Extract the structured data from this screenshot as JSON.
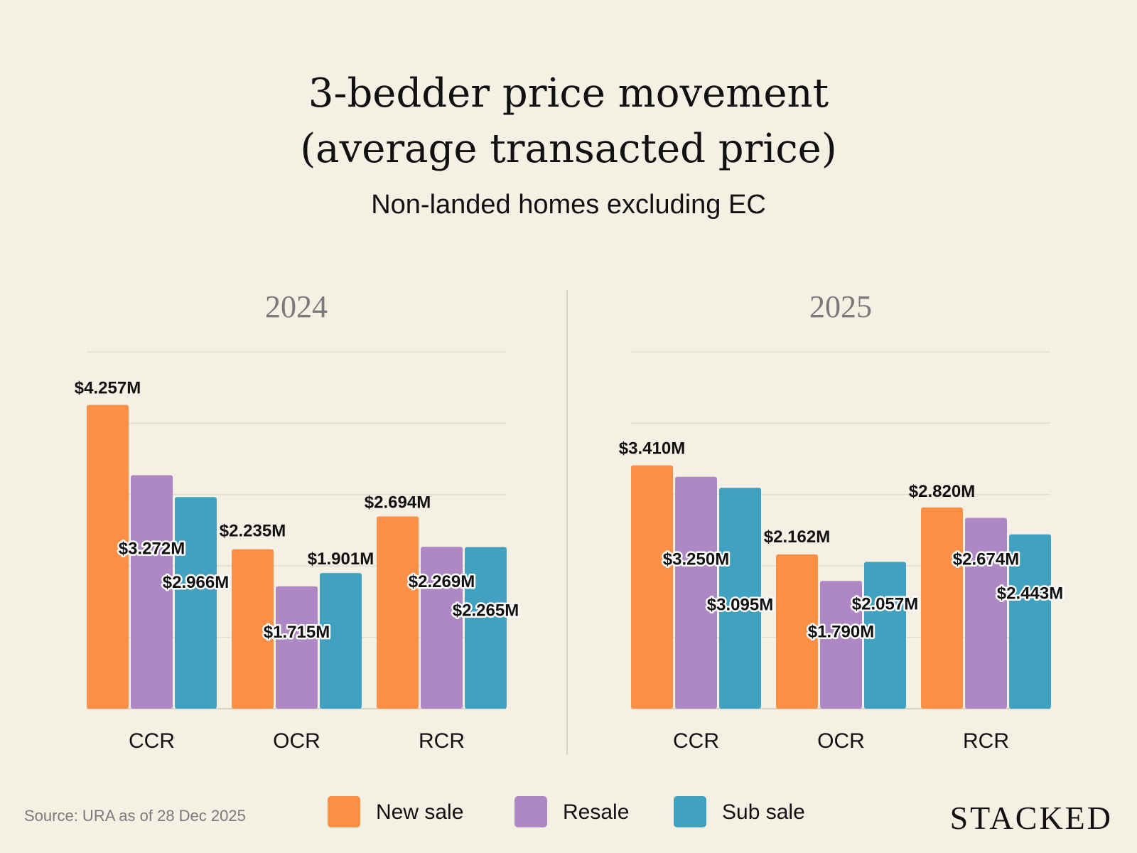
{
  "title_line1": "3-bedder price movement",
  "title_line2": "(average transacted price)",
  "subtitle": "Non-landed homes excluding EC",
  "source": "Source: URA as of 28 Dec 2025",
  "brand": "STACKED",
  "colors": {
    "background": "#F5F0E4",
    "new_sale": "#FB8F45",
    "resale": "#AD88C4",
    "sub_sale": "#40A2C0"
  },
  "legend": [
    {
      "label": "New sale",
      "color": "#FB8F45"
    },
    {
      "label": "Resale",
      "color": "#AD88C4"
    },
    {
      "label": "Sub sale",
      "color": "#40A2C0"
    }
  ],
  "chart_data": [
    {
      "type": "bar",
      "title": "2024",
      "categories": [
        "CCR",
        "OCR",
        "RCR"
      ],
      "ylim": [
        0,
        5
      ],
      "grid": true,
      "legend_position": "bottom",
      "series": [
        {
          "name": "New sale",
          "values": [
            4.257,
            2.235,
            2.694
          ],
          "labels": [
            "$4.257M",
            "$2.235M",
            "$2.694M"
          ]
        },
        {
          "name": "Resale",
          "values": [
            3.272,
            1.715,
            2.269
          ],
          "labels": [
            "$3.272M",
            "$1.715M",
            "$2.269M"
          ]
        },
        {
          "name": "Sub sale",
          "values": [
            2.966,
            1.901,
            2.265
          ],
          "labels": [
            "$2.966M",
            "$1.901M",
            "$2.265M"
          ]
        }
      ]
    },
    {
      "type": "bar",
      "title": "2025",
      "categories": [
        "CCR",
        "OCR",
        "RCR"
      ],
      "ylim": [
        0,
        5
      ],
      "grid": true,
      "legend_position": "bottom",
      "series": [
        {
          "name": "New sale",
          "values": [
            3.41,
            2.162,
            2.82
          ],
          "labels": [
            "$3.410M",
            "$2.162M",
            "$2.820M"
          ]
        },
        {
          "name": "Resale",
          "values": [
            3.25,
            1.79,
            2.674
          ],
          "labels": [
            "$3.250M",
            "$1.790M",
            "$2.674M"
          ]
        },
        {
          "name": "Sub sale",
          "values": [
            3.095,
            2.057,
            2.443
          ],
          "labels": [
            "$3.095M",
            "$2.057M",
            "$2.443M"
          ]
        }
      ]
    }
  ]
}
